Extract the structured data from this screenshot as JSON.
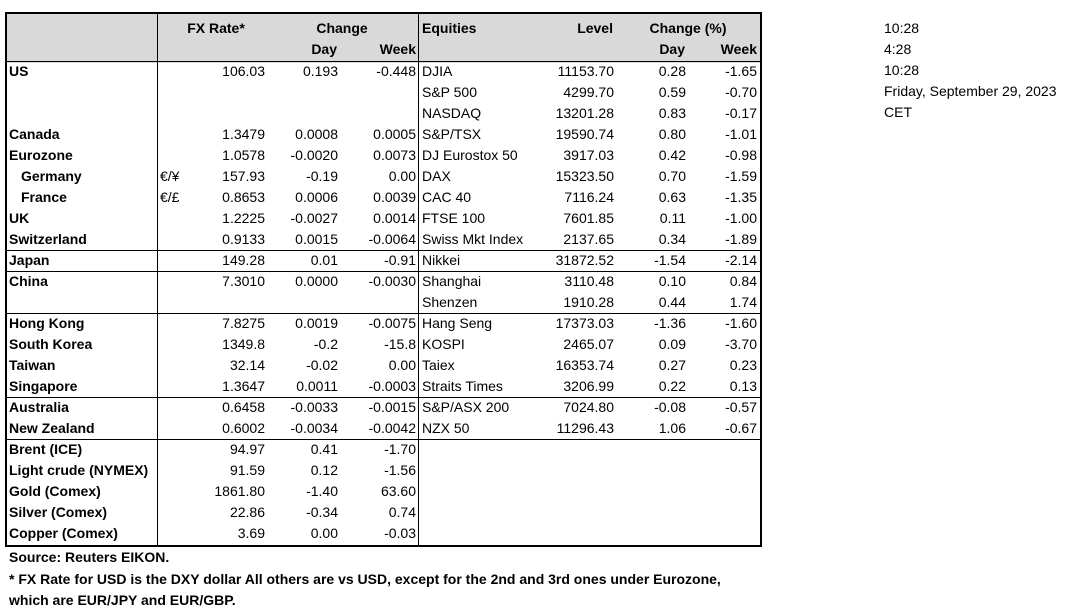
{
  "header": {
    "fx_rate": "FX Rate*",
    "change": "Change",
    "fx_day": "Day",
    "fx_week": "Week",
    "equities": "Equities",
    "level": "Level",
    "change_pct": "Change (%)",
    "eq_day": "Day",
    "eq_week": "Week"
  },
  "rows": [
    {
      "name": "US",
      "fx": [
        "106.03",
        "0.193",
        "-0.448"
      ],
      "equity": [
        "DJIA",
        "11153.70",
        "0.28",
        "-1.65"
      ]
    },
    {
      "equity": [
        "S&P 500",
        "4299.70",
        "0.59",
        "-0.70"
      ]
    },
    {
      "equity": [
        "NASDAQ",
        "13201.28",
        "0.83",
        "-0.17"
      ]
    },
    {
      "name": "Canada",
      "fx": [
        "1.3479",
        "0.0008",
        "0.0005"
      ],
      "equity": [
        "S&P/TSX",
        "19590.74",
        "0.80",
        "-1.01"
      ]
    },
    {
      "name": "Eurozone",
      "fx": [
        "1.0578",
        "-0.0020",
        "0.0073"
      ],
      "equity": [
        "DJ Eurostox 50",
        "3917.03",
        "0.42",
        "-0.98"
      ]
    },
    {
      "name": "Germany",
      "pair": "€/¥",
      "fx": [
        "157.93",
        "-0.19",
        "0.00"
      ],
      "equity": [
        "DAX",
        "15323.50",
        "0.70",
        "-1.59"
      ]
    },
    {
      "name": "France",
      "pair": "€/£",
      "fx": [
        "0.8653",
        "0.0006",
        "0.0039"
      ],
      "equity": [
        "CAC 40",
        "7116.24",
        "0.63",
        "-1.35"
      ]
    },
    {
      "name": "UK",
      "fx": [
        "1.2225",
        "-0.0027",
        "0.0014"
      ],
      "equity": [
        "FTSE 100",
        "7601.85",
        "0.11",
        "-1.00"
      ]
    },
    {
      "name": "Switzerland",
      "fx": [
        "0.9133",
        "0.0015",
        "-0.0064"
      ],
      "equity": [
        "Swiss Mkt Index",
        "2137.65",
        "0.34",
        "-1.89"
      ]
    },
    {
      "name": "Japan",
      "fx": [
        "149.28",
        "0.01",
        "-0.91"
      ],
      "equity": [
        "Nikkei",
        "31872.52",
        "-1.54",
        "-2.14"
      ]
    },
    {
      "name": "China",
      "fx": [
        "7.3010",
        "0.0000",
        "-0.0030"
      ],
      "equity": [
        "Shanghai",
        "3110.48",
        "0.10",
        "0.84"
      ]
    },
    {
      "equity": [
        "Shenzen",
        "1910.28",
        "0.44",
        "1.74"
      ]
    },
    {
      "name": "Hong Kong",
      "fx": [
        "7.8275",
        "0.0019",
        "-0.0075"
      ],
      "equity": [
        "Hang Seng",
        "17373.03",
        "-1.36",
        "-1.60"
      ]
    },
    {
      "name": "South Korea",
      "fx": [
        "1349.8",
        "-0.2",
        "-15.8"
      ],
      "equity": [
        "KOSPI",
        "2465.07",
        "0.09",
        "-3.70"
      ]
    },
    {
      "name": "Taiwan",
      "fx": [
        "32.14",
        "-0.02",
        "0.00"
      ],
      "equity": [
        "Taiex",
        "16353.74",
        "0.27",
        "0.23"
      ]
    },
    {
      "name": "Singapore",
      "fx": [
        "1.3647",
        "0.0011",
        "-0.0003"
      ],
      "equity": [
        "Straits Times",
        "3206.99",
        "0.22",
        "0.13"
      ]
    },
    {
      "name": "Australia",
      "fx": [
        "0.6458",
        "-0.0033",
        "-0.0015"
      ],
      "equity": [
        "S&P/ASX  200",
        "7024.80",
        "-0.08",
        "-0.57"
      ]
    },
    {
      "name": "New Zealand",
      "fx": [
        "0.6002",
        "-0.0034",
        "-0.0042"
      ],
      "equity": [
        "NZX 50",
        "11296.43",
        "1.06",
        "-0.67"
      ]
    },
    {
      "name": "Brent (ICE)",
      "fx": [
        "94.97",
        "0.41",
        "-1.70"
      ]
    },
    {
      "name": "Light crude (NYMEX)",
      "fx": [
        "91.59",
        "0.12",
        "-1.56"
      ]
    },
    {
      "name": "Gold (Comex)",
      "fx": [
        "1861.80",
        "-1.40",
        "63.60"
      ]
    },
    {
      "name": "Silver (Comex)",
      "fx": [
        "22.86",
        "-0.34",
        "0.74"
      ]
    },
    {
      "name": "Copper (Comex)",
      "fx": [
        "3.69",
        "0.00",
        "-0.03"
      ]
    }
  ],
  "notes": [
    "Source:  Reuters EIKON.",
    "* FX Rate for USD is the DXY dollar  All others are vs USD, except for the 2nd and 3rd ones under Eurozone,",
    " which are EUR/JPY and EUR/GBP."
  ],
  "times": [
    "10:28",
    "4:28",
    "10:28",
    "Friday, September 29, 2023",
    "CET"
  ]
}
